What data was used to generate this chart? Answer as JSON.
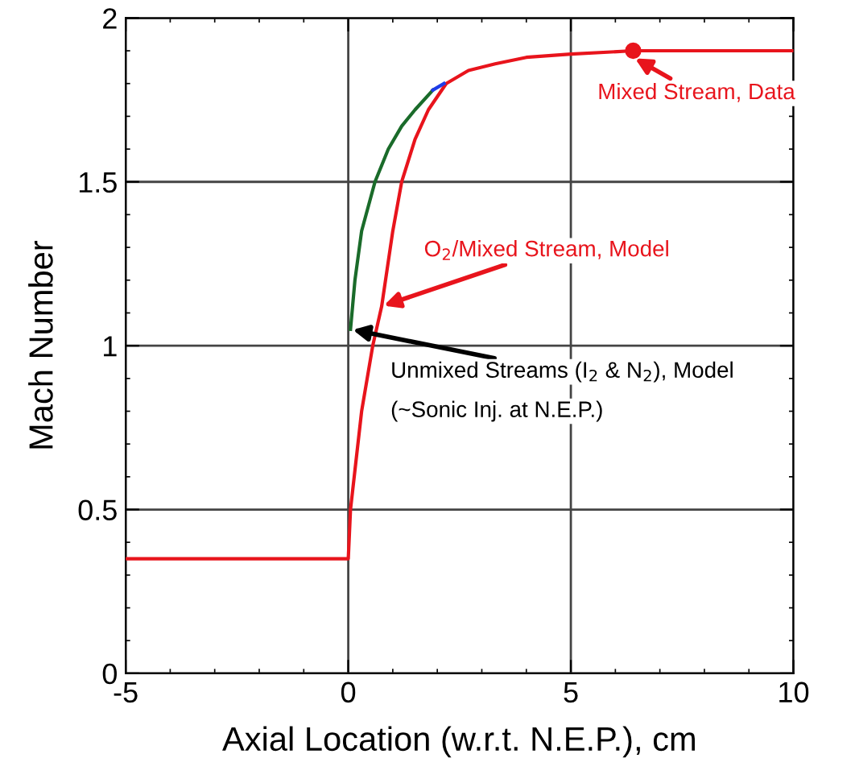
{
  "chart_data": {
    "type": "line",
    "xlabel": "Axial Location (w.r.t. N.E.P.), cm",
    "ylabel": "Mach Number",
    "xlim": [
      -5,
      10
    ],
    "ylim": [
      0,
      2
    ],
    "xticks": [
      -5,
      0,
      5,
      10
    ],
    "yticks": [
      0,
      0.5,
      1,
      1.5,
      2
    ],
    "grid": true,
    "legend": false,
    "series": [
      {
        "color": "#e8141c",
        "x": [
          -5,
          0,
          0.05,
          0.3,
          0.55,
          0.75,
          1.0,
          1.2,
          1.5,
          1.8,
          2.2,
          2.7,
          3.3,
          4.0,
          5.0,
          6.4,
          8.0,
          10
        ],
        "values": [
          0.35,
          0.35,
          0.5,
          0.8,
          1.0,
          1.12,
          1.35,
          1.5,
          1.63,
          1.72,
          1.8,
          1.84,
          1.86,
          1.88,
          1.89,
          1.9,
          1.9,
          1.9
        ]
      },
      {
        "color": "#1a6b2a",
        "x": [
          0.05,
          0.15,
          0.3,
          0.6,
          0.9,
          1.2,
          1.5,
          1.9
        ],
        "values": [
          1.05,
          1.2,
          1.35,
          1.5,
          1.6,
          1.67,
          1.72,
          1.78
        ]
      },
      {
        "color": "#1f3ce8",
        "x": [
          1.9,
          2.15
        ],
        "values": [
          1.78,
          1.8
        ]
      },
      {
        "type": "scatter",
        "color": "#e8141c",
        "marker": "circle",
        "x": [
          6.4
        ],
        "values": [
          1.9
        ]
      }
    ],
    "annotations": [
      {
        "text": "O$_{2}$/Mixed Stream, Model",
        "x": 0.75,
        "y": 1.12
      },
      {
        "text": "Unmixed Streams (I$_{2}$ & N$_{2}$), Model",
        "x": 0.05,
        "y": 1.05
      },
      {
        "text": "Mixed Stream, Data",
        "x": 6.4,
        "y": 1.88
      },
      "(~Sonic Inj. at N.E.P.)"
    ]
  }
}
